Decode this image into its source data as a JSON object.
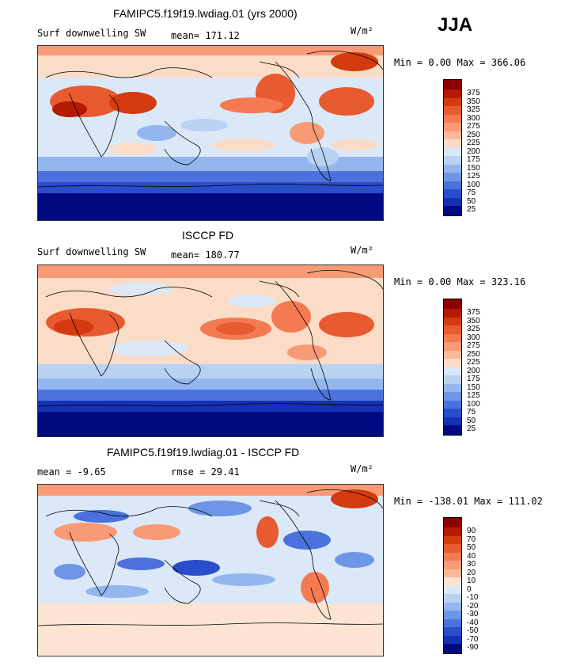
{
  "season": "JJA",
  "units": "W/m²",
  "panels": [
    {
      "title": "FAMIPC5.f19f19.lwdiag.01 (yrs 2000)",
      "left_label": "Surf downwelling SW",
      "mid_label": "mean= 171.12",
      "minmax": "Min =   0.00 Max = 366.06",
      "scale": "abs",
      "levels": [
        "375",
        "350",
        "325",
        "300",
        "275",
        "250",
        "225",
        "200",
        "175",
        "150",
        "125",
        "100",
        "75",
        "50",
        "25"
      ],
      "colors": [
        "#8b0000",
        "#b51a00",
        "#d43a10",
        "#e85a30",
        "#f47a52",
        "#f99a76",
        "#fbb99a",
        "#fbdcc6",
        "#dbe8f8",
        "#b9d2f4",
        "#93b6ee",
        "#6f96e6",
        "#4b72dc",
        "#2a4dcc",
        "#1430b5",
        "#000a80"
      ]
    },
    {
      "title": "ISCCP FD",
      "left_label": "Surf downwelling SW",
      "mid_label": "mean= 180.77",
      "minmax": "Min =   0.00 Max = 323.16",
      "scale": "abs",
      "levels": [
        "375",
        "350",
        "325",
        "300",
        "275",
        "250",
        "225",
        "200",
        "175",
        "150",
        "125",
        "100",
        "75",
        "50",
        "25"
      ],
      "colors": [
        "#8b0000",
        "#b51a00",
        "#d43a10",
        "#e85a30",
        "#f47a52",
        "#f99a76",
        "#fbb99a",
        "#fbdcc6",
        "#dbe8f8",
        "#b9d2f4",
        "#93b6ee",
        "#6f96e6",
        "#4b72dc",
        "#2a4dcc",
        "#1430b5",
        "#000a80"
      ]
    },
    {
      "title": "FAMIPC5.f19f19.lwdiag.01 - ISCCP FD",
      "left_label": "mean =   -9.65",
      "mid_label": "rmse =   29.41",
      "minmax": "Min = -138.01 Max = 111.02",
      "scale": "diff",
      "levels": [
        "90",
        "70",
        "50",
        "40",
        "30",
        "20",
        "10",
        "0",
        "-10",
        "-20",
        "-30",
        "-40",
        "-50",
        "-70",
        "-90"
      ],
      "colors": [
        "#8b0000",
        "#b51a00",
        "#d43a10",
        "#e85a30",
        "#f47a52",
        "#f99a76",
        "#fbb99a",
        "#fde4d2",
        "#dbe8f8",
        "#b9d2f4",
        "#93b6ee",
        "#6f96e6",
        "#4b72dc",
        "#2a4dcc",
        "#1430b5",
        "#000a80"
      ]
    }
  ]
}
